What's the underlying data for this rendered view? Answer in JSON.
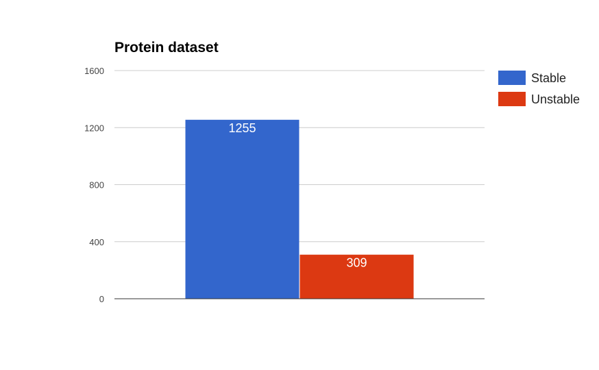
{
  "chart_data": {
    "type": "bar",
    "title": "Protein dataset",
    "xlabel": "",
    "ylabel": "",
    "ylim": [
      0,
      1600
    ],
    "yticks": [
      0,
      400,
      800,
      1200,
      1600
    ],
    "grid": true,
    "legend_position": "right",
    "series": [
      {
        "name": "Stable",
        "values": [
          1255
        ],
        "color": "#3366cc",
        "label": "1255"
      },
      {
        "name": "Unstable",
        "values": [
          309
        ],
        "color": "#dc3912",
        "label": "309"
      }
    ]
  }
}
